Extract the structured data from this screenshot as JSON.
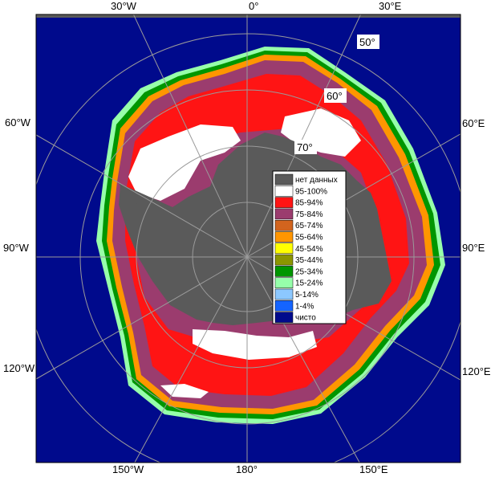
{
  "map": {
    "longitude_labels": [
      "30°W",
      "0°",
      "30°E",
      "60°E",
      "90°E",
      "120°E",
      "150°E",
      "180°",
      "150°W",
      "120°W",
      "90°W",
      "60°W"
    ],
    "latitude_labels": [
      "50°",
      "60°",
      "70°"
    ]
  },
  "legend": {
    "items": [
      {
        "label": "нет данных",
        "color": "#5a5a5a"
      },
      {
        "label": "95-100%",
        "color": "#ffffff"
      },
      {
        "label": "85-94%",
        "color": "#ff1414"
      },
      {
        "label": "75-84%",
        "color": "#9b3c6e"
      },
      {
        "label": "65-74%",
        "color": "#d2641e"
      },
      {
        "label": "55-64%",
        "color": "#ff9600"
      },
      {
        "label": "45-54%",
        "color": "#ffff00"
      },
      {
        "label": "35-44%",
        "color": "#8c9600"
      },
      {
        "label": "25-34%",
        "color": "#009600"
      },
      {
        "label": "15-24%",
        "color": "#96ffaa"
      },
      {
        "label": "5-14%",
        "color": "#8cc8ff"
      },
      {
        "label": "1-4%",
        "color": "#1464ff"
      },
      {
        "label": "чисто",
        "color": "#000a8c"
      }
    ]
  },
  "colors": {
    "ocean": "#000a8c",
    "land_no_data": "#5a5a5a",
    "frame": "#5a5a5a",
    "grid": "#9a9a9a"
  }
}
